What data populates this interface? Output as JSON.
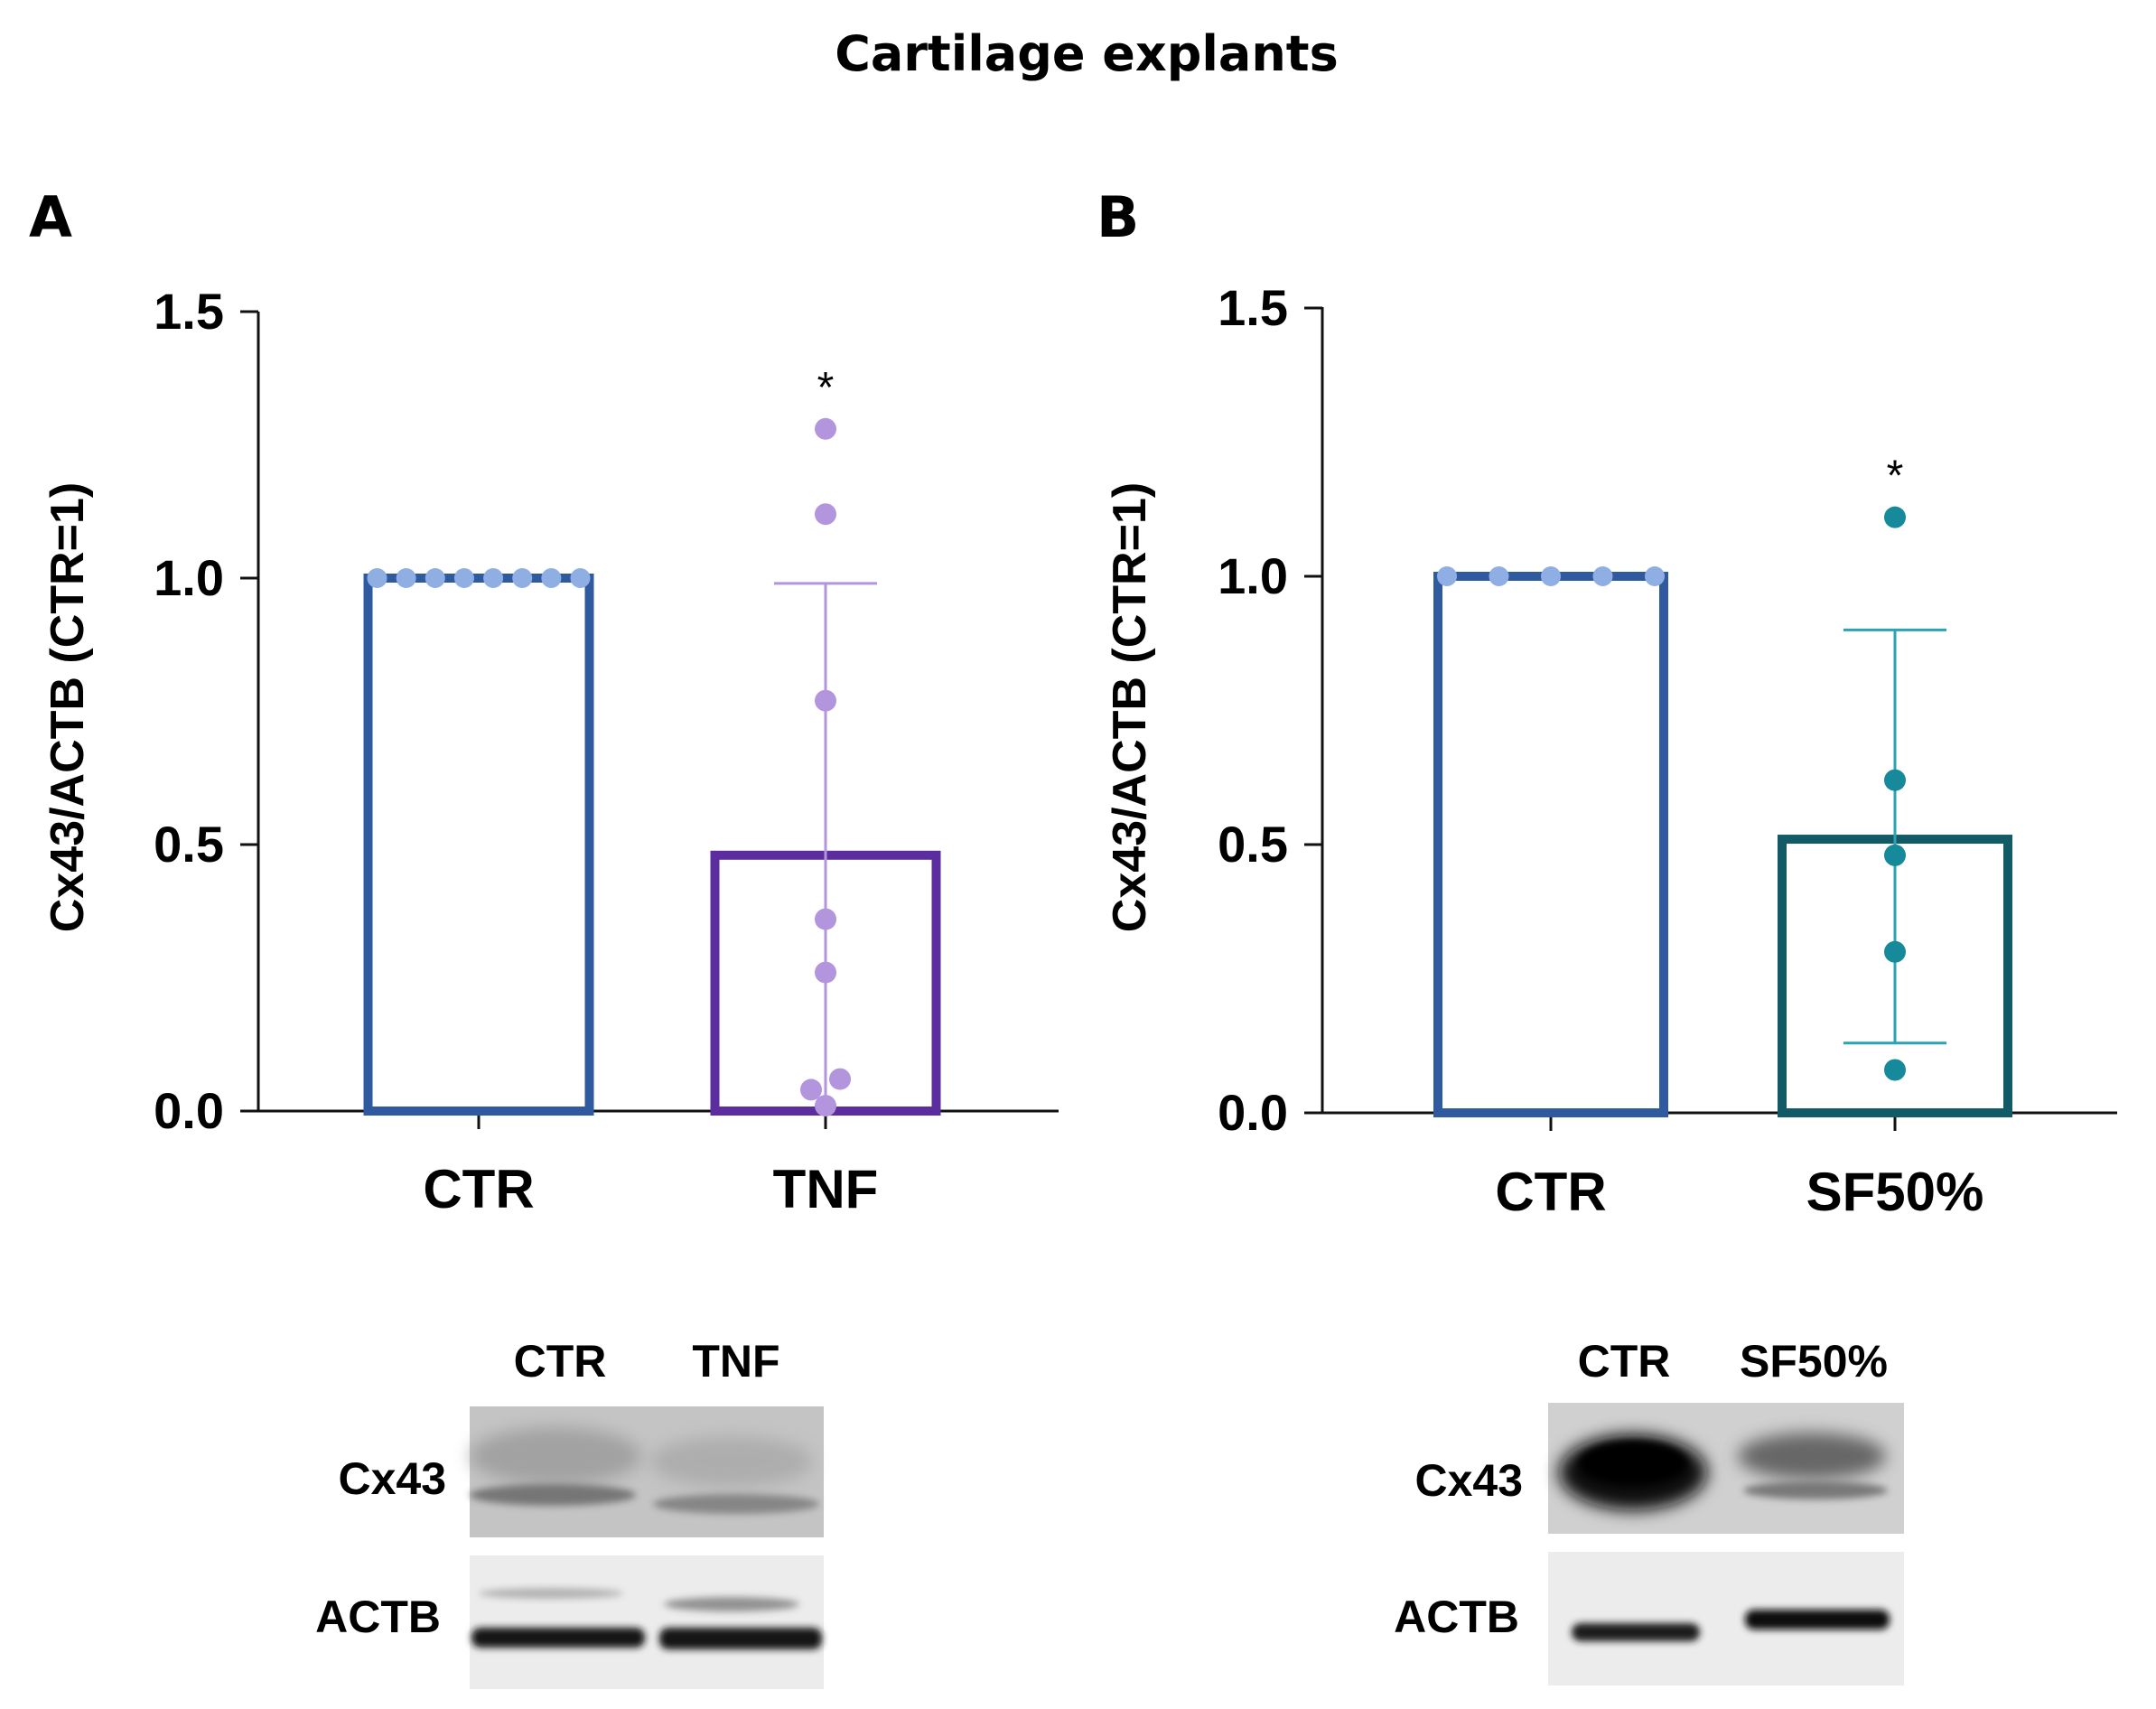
{
  "figure": {
    "title": "Cartilage explants"
  },
  "chart_data": [
    {
      "type": "bar",
      "panel": "A",
      "ylabel": "Cx43/ACTB (CTR=1)",
      "ylim": [
        0,
        1.5
      ],
      "yticks": [
        "0.0",
        "0.5",
        "1.0",
        "1.5"
      ],
      "categories": [
        "CTR",
        "TNF"
      ],
      "values": [
        1.0,
        0.48
      ],
      "error_high": [
        null,
        0.99
      ],
      "points": [
        [
          1.0,
          1.0,
          1.0,
          1.0,
          1.0,
          1.0,
          1.0,
          1.0
        ],
        [
          1.28,
          1.12,
          0.77,
          0.36,
          0.26,
          0.06,
          0.04,
          0.01
        ]
      ],
      "significance": [
        null,
        "*"
      ],
      "colors": {
        "bar_edges": [
          "#2f5aa0",
          "#5b2d9e"
        ],
        "points": [
          "#8faee3",
          "#b295dd"
        ],
        "error": "#b295dd"
      }
    },
    {
      "type": "bar",
      "panel": "B",
      "ylabel": "Cx43/ACTB (CTR=1)",
      "ylim": [
        0,
        1.5
      ],
      "yticks": [
        "0.0",
        "0.5",
        "1.0",
        "1.5"
      ],
      "categories": [
        "CTR",
        "SF50%"
      ],
      "values": [
        1.0,
        0.51
      ],
      "error_high": [
        null,
        0.9
      ],
      "error_low": [
        null,
        0.13
      ],
      "points": [
        [
          1.0,
          1.0,
          1.0,
          1.0,
          1.0
        ],
        [
          1.11,
          0.62,
          0.48,
          0.3,
          0.08
        ]
      ],
      "significance": [
        null,
        "*"
      ],
      "colors": {
        "bar_edges": [
          "#2f5aa0",
          "#115a66"
        ],
        "points": [
          "#8faee3",
          "#16899a"
        ],
        "error": "#2aa3b3"
      }
    }
  ],
  "blots": [
    {
      "panel": "A",
      "lanes": [
        "CTR",
        "TNF"
      ],
      "rows": [
        "Cx43",
        "ACTB"
      ]
    },
    {
      "panel": "B",
      "lanes": [
        "CTR",
        "SF50%"
      ],
      "rows": [
        "Cx43",
        "ACTB"
      ]
    }
  ]
}
